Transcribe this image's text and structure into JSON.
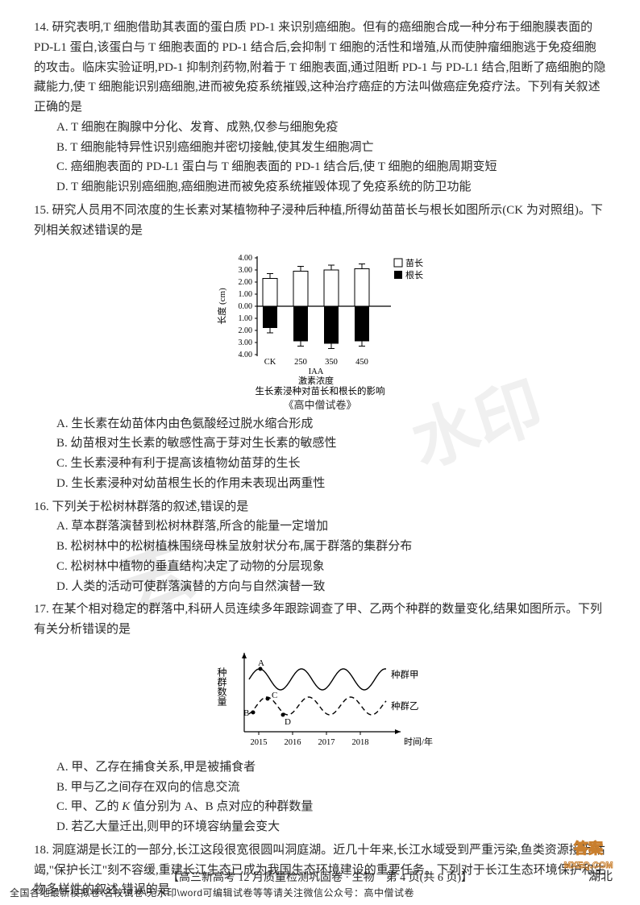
{
  "watermarks": {
    "wm1_text": "水印",
    "wm2_text": "去",
    "brand_top": "答案",
    "brand_bottom": "MXEQ.COM"
  },
  "q14": {
    "num": "14.",
    "stem": "研究表明,T 细胞借助其表面的蛋白质 PD-1 来识别癌细胞。但有的癌细胞合成一种分布于细胞膜表面的 PD-L1 蛋白,该蛋白与 T 细胞表面的 PD-1 结合后,会抑制 T 细胞的活性和增殖,从而使肿瘤细胞逃于免疫细胞的攻击。临床实验证明,PD-1 抑制剂药物,附着于 T 细胞表面,通过阻断 PD-1 与 PD-L1 结合,阻断了癌细胞的隐藏能力,使 T 细胞能识别癌细胞,进而被免疫系统摧毁,这种治疗癌症的方法叫做癌症免疫疗法。下列有关叙述正确的是",
    "A": "A. T 细胞在胸腺中分化、发育、成熟,仅参与细胞免疫",
    "B": "B. T 细胞能特异性识别癌细胞并密切接触,使其发生细胞凋亡",
    "C": "C. 癌细胞表面的 PD-L1 蛋白与 T 细胞表面的 PD-1 结合后,使 T 细胞的细胞周期变短",
    "D": "D. T 细胞能识别癌细胞,癌细胞进而被免疫系统摧毁体现了免疫系统的防卫功能"
  },
  "q15": {
    "num": "15.",
    "stem": "研究人员用不同浓度的生长素对某植物种子浸种后种植,所得幼苗苗长与根长如图所示(CK 为对照组)。下列相关叙述错误的是",
    "chart": {
      "groups": [
        "CK",
        "250",
        "350",
        "450"
      ],
      "shoot": [
        2.3,
        2.9,
        3.0,
        3.1
      ],
      "root": [
        1.8,
        2.9,
        3.1,
        2.9
      ],
      "y_ticks": [
        "4.00",
        "3.00",
        "2.00",
        "1.00",
        "0.00",
        "1.00",
        "2.00",
        "3.00",
        "4.00"
      ],
      "y_label": "长度 (cm)",
      "x_label1": "IAA",
      "x_label2": "激素浓度",
      "title": "生长素浸种对苗长和根长的影响",
      "legend_shoot": "苗长",
      "legend_root": "根长",
      "colors": {
        "shoot_fill": "#ffffff",
        "shoot_stroke": "#000000",
        "root_fill": "#000000",
        "axis": "#000000",
        "bg": "#ffffff",
        "err": "#000000"
      }
    },
    "extra": "《高中僧试卷》",
    "A": "A. 生长素在幼苗体内由色氨酸经过脱水缩合形成",
    "B": "B. 幼苗根对生长素的敏感性高于芽对生长素的敏感性",
    "C": "C. 生长素浸种有利于提高该植物幼苗芽的生长",
    "D": "D. 生长素浸种对幼苗根生长的作用未表现出两重性"
  },
  "q16": {
    "num": "16.",
    "stem": "下列关于松树林群落的叙述,错误的是",
    "A": "A. 草本群落演替到松树林群落,所含的能量一定增加",
    "B": "B. 松树林中的松树植株围绕母株呈放射状分布,属于群落的集群分布",
    "C": "C. 松树林中植物的垂直结构决定了动物的分层现象",
    "D": "D. 人类的活动可使群落演替的方向与自然演替一致"
  },
  "q17": {
    "num": "17.",
    "stem": "在某个相对稳定的群落中,科研人员连续多年跟踪调查了甲、乙两个种群的数量变化,结果如图所示。下列有关分析错误的是",
    "chart": {
      "x_ticks": [
        "2015",
        "2016",
        "2017",
        "2018"
      ],
      "x_label": "时间/年",
      "y_label": "种群数量",
      "legend_a": "种群甲",
      "legend_b": "种群乙",
      "colors": {
        "line_a": "#000000",
        "line_b": "#000000",
        "axis": "#000000"
      },
      "points": [
        "A",
        "B",
        "C",
        "D"
      ]
    },
    "A": "A. 甲、乙存在捕食关系,甲是被捕食者",
    "B": "B. 甲与乙之间存在双向的信息交流",
    "C": "C. 甲、乙的 K 值分别为 A、B 点对应的种群数量",
    "D": "D. 若乙大量迁出,则甲的环境容纳量会变大"
  },
  "q18": {
    "num": "18.",
    "stem": "洞庭湖是长江的一部分,长江这段很宽很圆叫洞庭湖。近几十年来,长江水域受到严重污染,鱼类资源接近枯竭,\"保护长江\"刻不容缓,重建长江生态已成为我国生态环境建设的重要任务。下列对于长江生态环境保护和生物多样性的叙述,错误的是"
  },
  "footer": {
    "text": "【高三新高考 12 月质量检测巩固卷 · 生物　第 4 页(共 6 页)】",
    "note": "全国各地最新模拟卷\\名校试卷\\无水印\\word可编辑试卷等等请关注微信公众号：高中僧试卷",
    "right": "湖北"
  }
}
